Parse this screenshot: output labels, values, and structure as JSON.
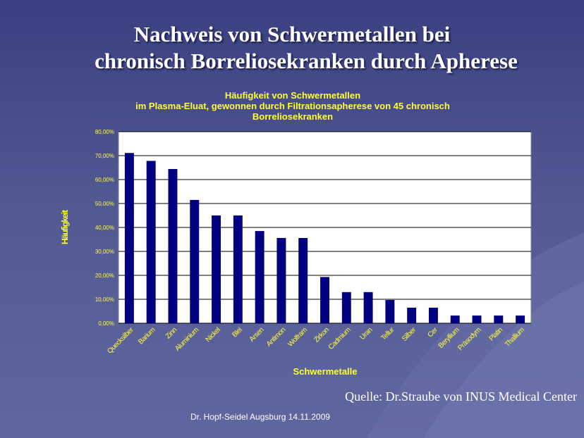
{
  "slide": {
    "title_line1": "Nachweis von Schwermetallen bei",
    "title_line2": "chronisch Borreliosekranken durch Apherese",
    "source": "Quelle: Dr.Straube von INUS Medical Center",
    "footer": "Dr. Hopf-Seidel  Augsburg 14.11.2009"
  },
  "colors": {
    "bar": "#000080",
    "chart_text": "#ffff33",
    "plot_bg": "#ffffff",
    "gridline": "#000000"
  },
  "chart_data": {
    "type": "bar",
    "title_lines": [
      "Häufigkeit von Schwermetallen",
      "im Plasma-Eluat, gewonnen durch Filtrationsapherese von 45 chronisch",
      "Borreliosekranken"
    ],
    "xlabel": "Schwermetalle",
    "ylabel": "Häufigkeit",
    "categories": [
      "Quecksilber",
      "Barium",
      "Zinn",
      "Aluminium",
      "Nickel",
      "Blei",
      "Arsen",
      "Antimon",
      "Wolfram",
      "Zirkon",
      "Cadmium",
      "Uran",
      "Tellur",
      "Silber",
      "Cer",
      "Beryllium",
      "Präsodym",
      "Platin",
      "Thallium"
    ],
    "values": [
      71.1,
      67.8,
      64.4,
      51.5,
      45.0,
      45.0,
      38.5,
      35.6,
      35.6,
      19.3,
      13.0,
      13.0,
      9.7,
      6.5,
      6.5,
      3.2,
      3.2,
      3.2,
      3.2
    ],
    "ylim": [
      0,
      80
    ],
    "yticks": [
      0,
      10,
      20,
      30,
      40,
      50,
      60,
      70,
      80
    ],
    "ytick_labels": [
      "0,00%",
      "10,00%",
      "20,00%",
      "30,00%",
      "40,00%",
      "50,00%",
      "60,00%",
      "70,00%",
      "80,00%"
    ],
    "grid": true,
    "legend": "none"
  }
}
